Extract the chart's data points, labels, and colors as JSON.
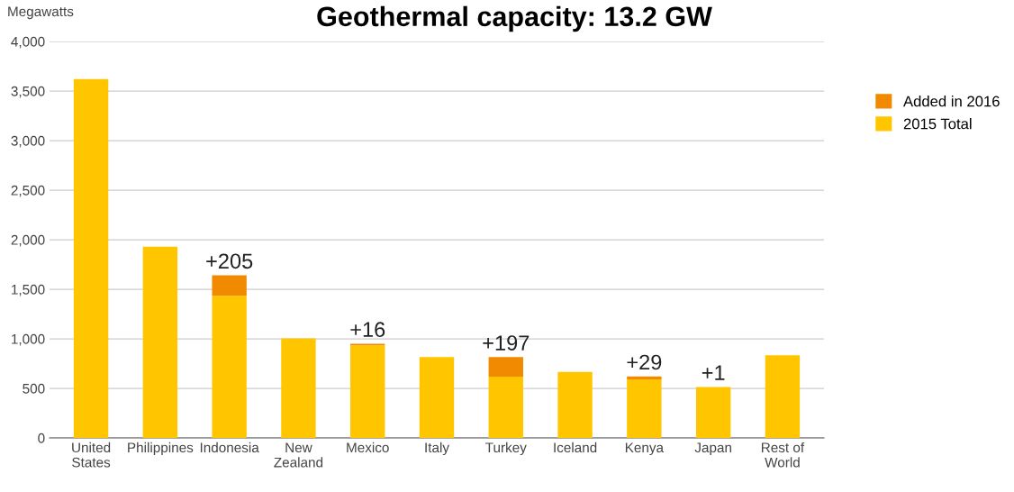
{
  "chart_data": {
    "type": "bar",
    "title": "Geothermal capacity: 13.2 GW",
    "ylabel": "Megawatts",
    "stacked": true,
    "categories": [
      "United\nStates",
      "Philippines",
      "Indonesia",
      "New\nZealand",
      "Mexico",
      "Italy",
      "Turkey",
      "Iceland",
      "Kenya",
      "Japan",
      "Rest of\nWorld"
    ],
    "series": [
      {
        "name": "2015 Total",
        "color": "#ffc600",
        "values": [
          3620,
          1930,
          1435,
          1005,
          934,
          815,
          618,
          665,
          591,
          513,
          833
        ]
      },
      {
        "name": "Added in 2016",
        "color": "#f18a00",
        "values": [
          null,
          null,
          205,
          null,
          16,
          null,
          197,
          null,
          29,
          1,
          null
        ],
        "value_labels": [
          null,
          null,
          "+205",
          null,
          "+16",
          null,
          "+197",
          null,
          "+29",
          "+1",
          null
        ]
      }
    ],
    "ylim": [
      0,
      4000
    ],
    "yticks": [
      {
        "value": 0,
        "label": "0"
      },
      {
        "value": 500,
        "label": "500"
      },
      {
        "value": 1000,
        "label": "1,000"
      },
      {
        "value": 1500,
        "label": "1,500"
      },
      {
        "value": 2000,
        "label": "2,000"
      },
      {
        "value": 2500,
        "label": "2,500"
      },
      {
        "value": 3000,
        "label": "3,000"
      },
      {
        "value": 3500,
        "label": "3,500"
      },
      {
        "value": 4000,
        "label": "4,000"
      }
    ],
    "grid": "y",
    "legend": "right"
  }
}
